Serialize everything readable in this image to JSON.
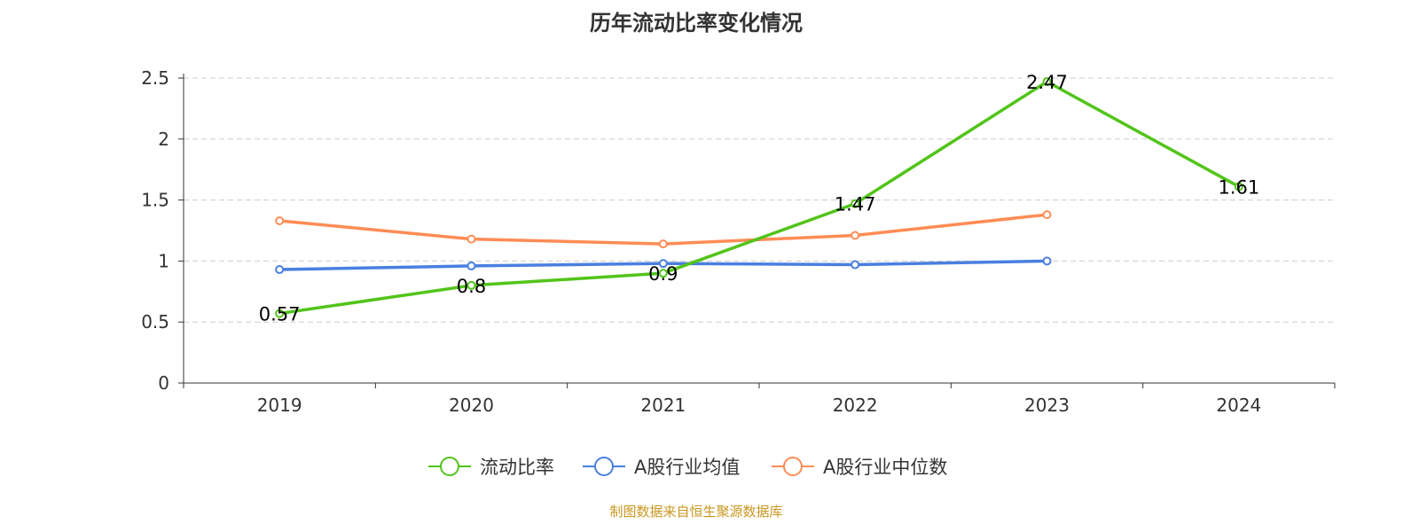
{
  "chart_data": {
    "type": "line",
    "title": "历年流动比率变化情况",
    "categories": [
      "2019",
      "2020",
      "2021",
      "2022",
      "2023",
      "2024"
    ],
    "ylim": [
      0,
      2.5
    ],
    "yticks": [
      "0",
      "0.5",
      "1",
      "1.5",
      "2",
      "2.5"
    ],
    "grid": true,
    "legend_position": "bottom",
    "series": [
      {
        "name": "流动比率",
        "color": "#52c41a",
        "values": [
          0.57,
          0.8,
          0.9,
          1.47,
          2.47,
          1.61
        ],
        "labels": [
          "0.57",
          "0.8",
          "0.9",
          "1.47",
          "2.47",
          "1.61"
        ]
      },
      {
        "name": "A股行业均值",
        "color": "#4a7fe0",
        "values": [
          0.93,
          0.96,
          0.98,
          0.97,
          1.0,
          null
        ]
      },
      {
        "name": "A股行业中位数",
        "color": "#ff8c55",
        "values": [
          1.33,
          1.18,
          1.14,
          1.21,
          1.38,
          null
        ]
      }
    ]
  },
  "source": "制图数据来自恒生聚源数据库"
}
